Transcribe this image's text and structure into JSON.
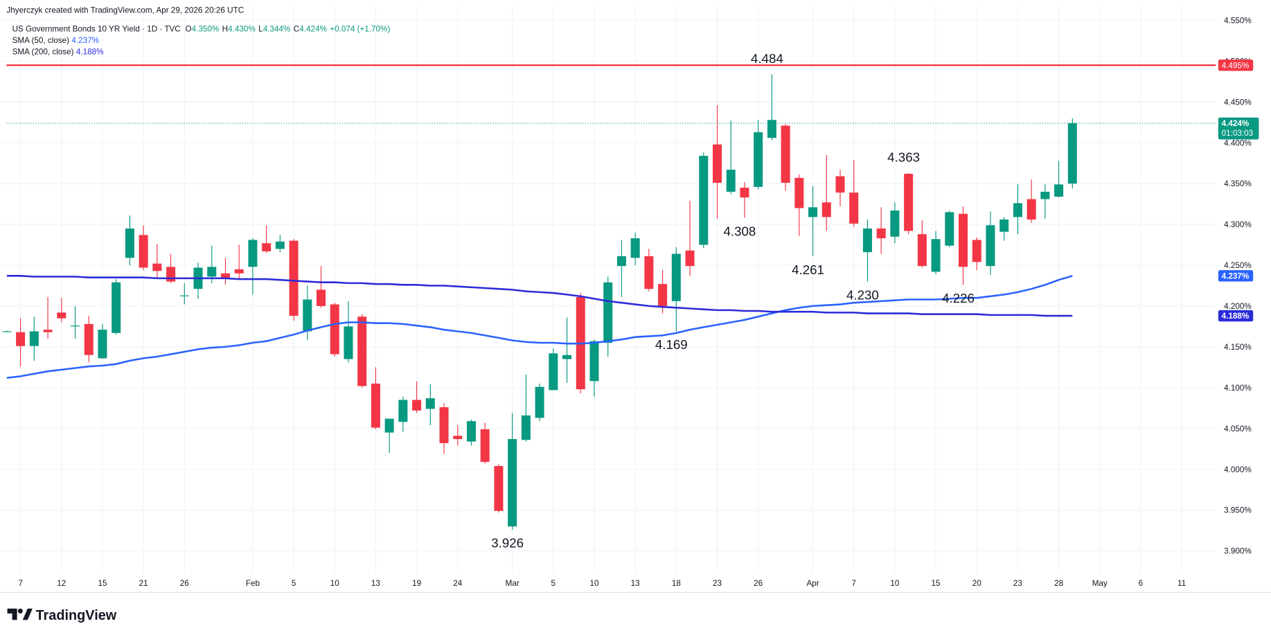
{
  "header": {
    "credit": "Jhyerczyk created with TradingView.com, Apr 29, 2026 20:26 UTC",
    "symbol": "US Government Bonds 10 YR Yield · 1D · TVC",
    "o_label": "O",
    "o_value": "4.350%",
    "h_label": "H",
    "h_value": "4.430%",
    "l_label": "L",
    "l_value": "4.344%",
    "c_label": "C",
    "c_value": "4.424%",
    "change": "+0.074 (+1.70%)"
  },
  "footer": {
    "brand": "TradingView"
  },
  "chart_data": {
    "type": "candlestick",
    "up_color": "#089981",
    "down_color": "#f23645",
    "grid": true,
    "x": [
      0,
      1,
      2,
      3,
      4,
      5,
      6,
      7,
      8,
      9,
      10,
      11,
      12,
      13,
      14,
      15,
      16,
      17,
      18,
      19,
      20,
      21,
      22,
      23,
      24,
      25,
      26,
      27,
      28,
      29,
      30,
      31,
      32,
      33,
      34,
      35,
      36,
      37,
      38,
      39,
      40,
      41,
      42,
      43,
      44,
      45,
      46,
      47,
      48,
      49,
      50,
      51,
      52,
      53,
      54,
      55,
      56,
      57,
      58,
      59,
      60,
      61,
      62,
      63,
      64,
      65,
      66,
      67,
      68,
      69,
      70,
      71,
      72,
      73,
      74,
      75,
      76,
      77,
      78
    ],
    "open": [
      4.169,
      4.168,
      4.151,
      4.171,
      4.192,
      4.176,
      4.178,
      4.136,
      4.167,
      4.259,
      4.287,
      4.252,
      4.248,
      4.213,
      4.221,
      4.236,
      4.24,
      4.245,
      4.248,
      4.277,
      4.27,
      4.28,
      4.169,
      4.22,
      4.202,
      4.135,
      4.187,
      4.105,
      4.045,
      4.058,
      4.085,
      4.074,
      4.076,
      4.041,
      4.034,
      4.049,
      4.004,
      3.93,
      4.036,
      4.063,
      4.097,
      4.135,
      4.211,
      4.108,
      4.155,
      4.249,
      4.259,
      4.261,
      4.227,
      4.206,
      4.268,
      4.275,
      4.398,
      4.34,
      4.345,
      4.346,
      4.406,
      4.421,
      4.357,
      4.309,
      4.327,
      4.359,
      4.339,
      4.266,
      4.295,
      4.285,
      4.362,
      4.288,
      4.242,
      4.274,
      4.313,
      4.281,
      4.249,
      4.291,
      4.309,
      4.331,
      4.331,
      4.334,
      4.35
    ],
    "high": [
      4.17,
      4.185,
      4.187,
      4.211,
      4.21,
      4.2,
      4.188,
      4.178,
      4.233,
      4.311,
      4.299,
      4.276,
      4.264,
      4.228,
      4.253,
      4.274,
      4.259,
      4.275,
      4.283,
      4.299,
      4.287,
      4.282,
      4.225,
      4.249,
      4.204,
      4.206,
      4.19,
      4.125,
      4.062,
      4.089,
      4.108,
      4.104,
      4.081,
      4.054,
      4.061,
      4.057,
      4.006,
      4.069,
      4.116,
      4.105,
      4.148,
      4.186,
      4.216,
      4.159,
      4.236,
      4.281,
      4.29,
      4.27,
      4.244,
      4.272,
      4.329,
      4.388,
      4.446,
      4.427,
      4.352,
      4.428,
      4.484,
      4.423,
      4.361,
      4.347,
      4.385,
      4.367,
      4.379,
      4.306,
      4.321,
      4.327,
      4.363,
      4.305,
      4.292,
      4.317,
      4.322,
      4.284,
      4.316,
      4.309,
      4.349,
      4.355,
      4.349,
      4.378,
      4.43
    ],
    "low": [
      4.168,
      4.126,
      4.133,
      4.16,
      4.18,
      4.16,
      4.131,
      4.135,
      4.165,
      4.25,
      4.244,
      4.235,
      4.228,
      4.202,
      4.209,
      4.228,
      4.226,
      4.233,
      4.214,
      4.265,
      4.266,
      4.182,
      4.158,
      4.198,
      4.138,
      4.131,
      4.1,
      4.049,
      4.02,
      4.046,
      4.069,
      4.054,
      4.019,
      4.029,
      4.029,
      4.007,
      3.947,
      3.926,
      4.034,
      4.059,
      4.097,
      4.106,
      4.093,
      4.089,
      4.138,
      4.211,
      4.25,
      4.218,
      4.191,
      4.169,
      4.237,
      4.271,
      4.307,
      4.337,
      4.308,
      4.343,
      4.403,
      4.341,
      4.286,
      4.261,
      4.292,
      4.322,
      4.297,
      4.23,
      4.264,
      4.277,
      4.288,
      4.247,
      4.239,
      4.272,
      4.226,
      4.244,
      4.238,
      4.28,
      4.288,
      4.302,
      4.307,
      4.333,
      4.344
    ],
    "close": [
      4.169,
      4.151,
      4.169,
      4.168,
      4.185,
      4.176,
      4.14,
      4.171,
      4.229,
      4.295,
      4.247,
      4.243,
      4.23,
      4.213,
      4.247,
      4.248,
      4.234,
      4.24,
      4.281,
      4.267,
      4.279,
      4.188,
      4.208,
      4.2,
      4.141,
      4.175,
      4.102,
      4.051,
      4.062,
      4.085,
      4.072,
      4.087,
      4.032,
      4.037,
      4.059,
      4.009,
      3.949,
      4.037,
      4.066,
      4.101,
      4.142,
      4.14,
      4.098,
      4.157,
      4.229,
      4.261,
      4.283,
      4.221,
      4.2,
      4.264,
      4.249,
      4.384,
      4.351,
      4.367,
      4.333,
      4.413,
      4.428,
      4.351,
      4.32,
      4.321,
      4.309,
      4.339,
      4.301,
      4.295,
      4.283,
      4.317,
      4.292,
      4.249,
      4.282,
      4.315,
      4.248,
      4.254,
      4.299,
      4.306,
      4.326,
      4.306,
      4.34,
      4.349,
      4.424
    ],
    "lines": [
      {
        "name": "SMA (50, close)",
        "value_label": "4.237%",
        "color": "#2962ff",
        "values": [
          4.112,
          4.114,
          4.117,
          4.12,
          4.122,
          4.124,
          4.126,
          4.127,
          4.129,
          4.133,
          4.136,
          4.138,
          4.141,
          4.144,
          4.147,
          4.149,
          4.15,
          4.152,
          4.155,
          4.157,
          4.161,
          4.165,
          4.17,
          4.174,
          4.178,
          4.18,
          4.18,
          4.179,
          4.179,
          4.178,
          4.176,
          4.174,
          4.171,
          4.169,
          4.167,
          4.164,
          4.161,
          4.158,
          4.156,
          4.155,
          4.155,
          4.154,
          4.154,
          4.155,
          4.157,
          4.159,
          4.162,
          4.163,
          4.164,
          4.167,
          4.171,
          4.174,
          4.177,
          4.18,
          4.183,
          4.187,
          4.191,
          4.195,
          4.198,
          4.2,
          4.201,
          4.202,
          4.204,
          4.205,
          4.206,
          4.207,
          4.208,
          4.208,
          4.208,
          4.209,
          4.21,
          4.21,
          4.212,
          4.214,
          4.217,
          4.221,
          4.226,
          4.232,
          4.237
        ]
      },
      {
        "name": "SMA (200, close)",
        "value_label": "4.188%",
        "color": "#2b2bd9",
        "values": [
          4.237,
          4.237,
          4.236,
          4.236,
          4.236,
          4.236,
          4.235,
          4.235,
          4.235,
          4.235,
          4.235,
          4.234,
          4.234,
          4.234,
          4.234,
          4.234,
          4.234,
          4.233,
          4.233,
          4.233,
          4.232,
          4.231,
          4.23,
          4.229,
          4.229,
          4.228,
          4.228,
          4.227,
          4.227,
          4.226,
          4.226,
          4.225,
          4.225,
          4.224,
          4.223,
          4.222,
          4.221,
          4.22,
          4.218,
          4.217,
          4.216,
          4.214,
          4.212,
          4.209,
          4.206,
          4.204,
          4.202,
          4.2,
          4.199,
          4.198,
          4.197,
          4.196,
          4.195,
          4.195,
          4.194,
          4.194,
          4.193,
          4.193,
          4.193,
          4.193,
          4.192,
          4.192,
          4.192,
          4.191,
          4.191,
          4.191,
          4.191,
          4.19,
          4.19,
          4.19,
          4.19,
          4.19,
          4.189,
          4.189,
          4.189,
          4.189,
          4.188,
          4.188,
          4.188
        ]
      }
    ],
    "hline": {
      "value": 4.495,
      "label": "4.495%",
      "color": "#f23645"
    },
    "last": {
      "value": 4.424,
      "label": "4.424%",
      "countdown": "01:03:03"
    },
    "annotations": [
      {
        "label": "4.484",
        "value": 4.484,
        "x": 56,
        "side": "above"
      },
      {
        "label": "4.308",
        "value": 4.308,
        "x": 54,
        "side": "below"
      },
      {
        "label": "4.261",
        "value": 4.261,
        "x": 59,
        "side": "below"
      },
      {
        "label": "4.230",
        "value": 4.23,
        "x": 63,
        "side": "below"
      },
      {
        "label": "4.363",
        "value": 4.363,
        "x": 66,
        "side": "above"
      },
      {
        "label": "4.226",
        "value": 4.226,
        "x": 70,
        "side": "below"
      },
      {
        "label": "4.169",
        "value": 4.169,
        "x": 49,
        "side": "below"
      },
      {
        "label": "3.926",
        "value": 3.926,
        "x": 37,
        "side": "below"
      }
    ],
    "xlim": [
      -0.5,
      88.5
    ],
    "xticks": [
      {
        "value": 1,
        "label": "7"
      },
      {
        "value": 4,
        "label": "12"
      },
      {
        "value": 7,
        "label": "15"
      },
      {
        "value": 10,
        "label": "21"
      },
      {
        "value": 13,
        "label": "26"
      },
      {
        "value": 18,
        "label": "Feb"
      },
      {
        "value": 21,
        "label": "5"
      },
      {
        "value": 24,
        "label": "10"
      },
      {
        "value": 27,
        "label": "13"
      },
      {
        "value": 30,
        "label": "19"
      },
      {
        "value": 33,
        "label": "24"
      },
      {
        "value": 37,
        "label": "Mar"
      },
      {
        "value": 40,
        "label": "5"
      },
      {
        "value": 43,
        "label": "10"
      },
      {
        "value": 46,
        "label": "13"
      },
      {
        "value": 49,
        "label": "18"
      },
      {
        "value": 52,
        "label": "23"
      },
      {
        "value": 55,
        "label": "26"
      },
      {
        "value": 59,
        "label": "Apr"
      },
      {
        "value": 62,
        "label": "7"
      },
      {
        "value": 65,
        "label": "10"
      },
      {
        "value": 68,
        "label": "15"
      },
      {
        "value": 71,
        "label": "20"
      },
      {
        "value": 74,
        "label": "23"
      },
      {
        "value": 77,
        "label": "28"
      },
      {
        "value": 80,
        "label": "May"
      },
      {
        "value": 83,
        "label": "6"
      },
      {
        "value": 86,
        "label": "11"
      }
    ],
    "ylim": [
      3.874,
      4.567
    ],
    "yticks": [
      {
        "value": 3.9,
        "label": "3.900%"
      },
      {
        "value": 3.95,
        "label": "3.950%"
      },
      {
        "value": 4.0,
        "label": "4.000%"
      },
      {
        "value": 4.05,
        "label": "4.050%"
      },
      {
        "value": 4.1,
        "label": "4.100%"
      },
      {
        "value": 4.15,
        "label": "4.150%"
      },
      {
        "value": 4.2,
        "label": "4.200%"
      },
      {
        "value": 4.25,
        "label": "4.250%"
      },
      {
        "value": 4.3,
        "label": "4.300%"
      },
      {
        "value": 4.35,
        "label": "4.350%"
      },
      {
        "value": 4.4,
        "label": "4.400%"
      },
      {
        "value": 4.45,
        "label": "4.450%"
      },
      {
        "value": 4.5,
        "label": "4.500%"
      },
      {
        "value": 4.55,
        "label": "4.550%"
      }
    ]
  }
}
